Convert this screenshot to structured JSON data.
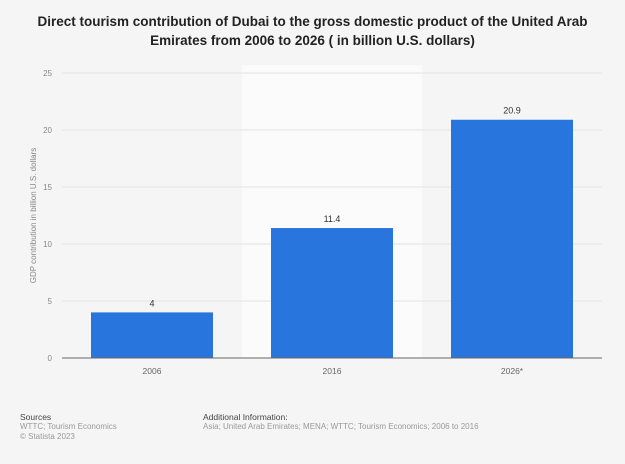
{
  "chart_data": {
    "type": "bar",
    "title": "Direct tourism contribution of Dubai to the gross domestic product of the United Arab Emirates from 2006 to 2026 ( in billion U.S. dollars)",
    "categories": [
      "2006",
      "2016",
      "2026*"
    ],
    "values": [
      4,
      11.4,
      20.9
    ],
    "data_labels": [
      "4",
      "11.4",
      "20.9"
    ],
    "ylabel": "GDP contribution in billion U.S. dollars",
    "xlabel": "",
    "ylim": [
      0,
      25
    ],
    "yticks": [
      0,
      5,
      10,
      15,
      20,
      25
    ],
    "grid": true,
    "bar_color": "#2876dd"
  },
  "footer": {
    "sources_label": "Sources",
    "sources": "WTTC; Tourism Economics",
    "copyright": "© Statista 2023",
    "additional_label": "Additional Information:",
    "additional": "Asia; United Arab Emirates; MENA; WTTC; Tourism Economics; 2006 to 2016"
  }
}
